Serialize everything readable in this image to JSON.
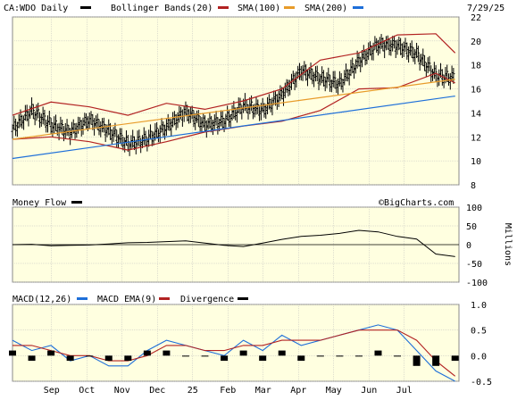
{
  "header": {
    "symbol_label": "CA:WDO Daily",
    "bb_label": "Bollinger Bands(20)",
    "sma100_label": "SMA(100)",
    "sma200_label": "SMA(200)",
    "date": "7/29/25"
  },
  "colors": {
    "background": "#FFFFE0",
    "price": "#000000",
    "bollinger": "#B22222",
    "sma100": "#B22222",
    "sma200": "#E89B2A",
    "ma200": "#1E6FD9",
    "money_flow": "#000000",
    "macd": "#1E6FD9",
    "macd_ema": "#B22222",
    "divergence": "#000000",
    "grid": "#BDBDBD"
  },
  "mf_panel": {
    "label": "Money Flow",
    "watermark": "©BigCharts.com",
    "unit": "Millions"
  },
  "macd_panel": {
    "label1": "MACD(12,26)",
    "label2": "MACD EMA(9)",
    "label3": "Divergence"
  },
  "x_labels": [
    "Sep",
    "Oct",
    "Nov",
    "Dec",
    "25",
    "Feb",
    "Mar",
    "Apr",
    "May",
    "Jun",
    "Jul"
  ],
  "chart_data": [
    {
      "type": "line",
      "panel": "price",
      "xlabels": [
        "Sep",
        "Oct",
        "Nov",
        "Dec",
        "25",
        "Feb",
        "Mar",
        "Apr",
        "May",
        "Jun",
        "Jul"
      ],
      "ylim": [
        8,
        22
      ],
      "yticks": [
        8,
        10,
        12,
        14,
        16,
        18,
        20,
        22
      ],
      "x_month_index": [
        0,
        1,
        2,
        3,
        4,
        5,
        6,
        7,
        8,
        9,
        10,
        11
      ],
      "series": [
        {
          "name": "CA:WDO Daily",
          "kind": "ohlc",
          "x": [
            0,
            0.5,
            1,
            1.5,
            2,
            2.5,
            3,
            3.5,
            4,
            4.5,
            5,
            5.5,
            6,
            6.5,
            7,
            7.5,
            8,
            8.5,
            9,
            9.5,
            10,
            10.5,
            11,
            11.5
          ],
          "values": [
            12.6,
            14.2,
            13.0,
            12.4,
            13.4,
            12.5,
            11.4,
            11.8,
            12.8,
            14.1,
            13.0,
            13.3,
            14.6,
            14.2,
            15.5,
            17.5,
            16.9,
            16.4,
            18.3,
            19.7,
            19.6,
            18.9,
            17.1,
            16.9
          ]
        },
        {
          "name": "Bollinger Bands(20) upper",
          "x": [
            0,
            1,
            2,
            3,
            4,
            5,
            6,
            7,
            8,
            9,
            10,
            11,
            11.5
          ],
          "values": [
            13.8,
            14.9,
            14.5,
            13.8,
            14.8,
            14.3,
            15.0,
            16.0,
            18.4,
            19.0,
            20.5,
            20.6,
            19.0
          ]
        },
        {
          "name": "Bollinger Bands(20) lower",
          "x": [
            0,
            1,
            2,
            3,
            4,
            5,
            6,
            7,
            8,
            9,
            10,
            11,
            11.5
          ],
          "values": [
            11.8,
            12.0,
            11.6,
            10.9,
            11.6,
            12.4,
            12.9,
            13.3,
            14.2,
            16.0,
            16.1,
            17.3,
            16.5
          ]
        },
        {
          "name": "SMA(100)",
          "x": [
            0,
            11.5
          ],
          "values": [
            11.8,
            16.8
          ]
        },
        {
          "name": "SMA(200)",
          "x": [
            0,
            11.5
          ],
          "values": [
            10.2,
            15.4
          ]
        }
      ]
    },
    {
      "type": "line",
      "panel": "money_flow",
      "name": "Money Flow",
      "ylabel": "Millions",
      "ylim": [
        -100,
        100
      ],
      "yticks": [
        100,
        50,
        0,
        -50,
        -100
      ],
      "x": [
        0,
        0.5,
        1,
        1.5,
        2,
        2.5,
        3,
        3.5,
        4,
        4.5,
        5,
        5.5,
        6,
        6.5,
        7,
        7.5,
        8,
        8.5,
        9,
        9.5,
        10,
        10.5,
        11,
        11.5
      ],
      "values": [
        0,
        1,
        -3,
        -2,
        -1,
        2,
        5,
        6,
        8,
        10,
        4,
        -2,
        -5,
        4,
        14,
        22,
        25,
        30,
        38,
        34,
        22,
        15,
        -25,
        -32
      ]
    },
    {
      "type": "line",
      "panel": "macd",
      "ylim": [
        -0.5,
        1.0
      ],
      "yticks": [
        1.0,
        0.5,
        0.0,
        -0.5
      ],
      "x": [
        0,
        0.5,
        1,
        1.5,
        2,
        2.5,
        3,
        3.5,
        4,
        4.5,
        5,
        5.5,
        6,
        6.5,
        7,
        7.5,
        8,
        8.5,
        9,
        9.5,
        10,
        10.5,
        11,
        11.5
      ],
      "series": [
        {
          "name": "MACD(12,26)",
          "values": [
            0.3,
            0.1,
            0.2,
            -0.1,
            0.0,
            -0.2,
            -0.2,
            0.1,
            0.3,
            0.2,
            0.1,
            0.0,
            0.3,
            0.1,
            0.4,
            0.2,
            0.3,
            0.4,
            0.5,
            0.6,
            0.5,
            0.1,
            -0.3,
            -0.5
          ]
        },
        {
          "name": "MACD EMA(9)",
          "values": [
            0.2,
            0.2,
            0.1,
            0.0,
            0.0,
            -0.1,
            -0.1,
            0.0,
            0.2,
            0.2,
            0.1,
            0.1,
            0.2,
            0.2,
            0.3,
            0.3,
            0.3,
            0.4,
            0.5,
            0.5,
            0.5,
            0.3,
            -0.1,
            -0.4
          ]
        },
        {
          "name": "Divergence",
          "kind": "bar",
          "values": [
            0.1,
            -0.1,
            0.1,
            -0.1,
            0.0,
            -0.1,
            -0.1,
            0.1,
            0.1,
            0.0,
            0.0,
            -0.1,
            0.1,
            -0.1,
            0.1,
            -0.1,
            0.0,
            0.0,
            0.0,
            0.1,
            0.0,
            -0.2,
            -0.2,
            -0.1
          ]
        }
      ]
    }
  ]
}
